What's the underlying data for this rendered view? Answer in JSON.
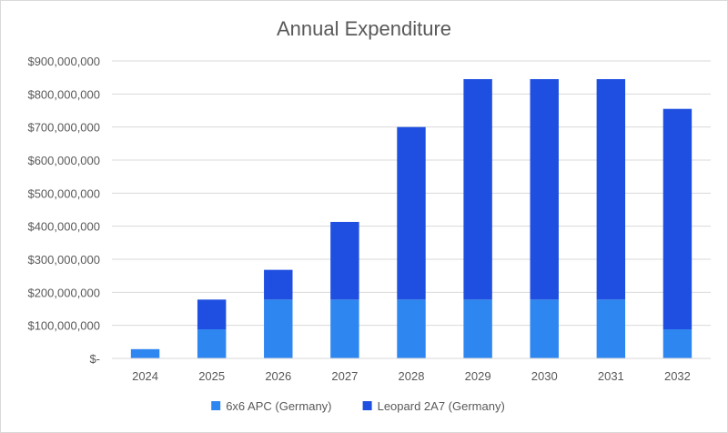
{
  "chart_data": {
    "type": "bar",
    "stacked": true,
    "title": "Annual Expenditure",
    "xlabel": "",
    "ylabel": "",
    "categories": [
      "2024",
      "2025",
      "2026",
      "2027",
      "2028",
      "2029",
      "2030",
      "2031",
      "2032"
    ],
    "series": [
      {
        "name": "6x6 APC (Germany)",
        "color": "#2e86f0",
        "values": [
          28000000,
          88000000,
          178000000,
          178000000,
          178000000,
          178000000,
          178000000,
          178000000,
          88000000
        ]
      },
      {
        "name": "Leopard 2A7 (Germany)",
        "color": "#1f4fe0",
        "values": [
          0,
          90000000,
          90000000,
          235000000,
          522000000,
          667000000,
          667000000,
          667000000,
          667000000
        ]
      }
    ],
    "ylim": [
      0,
      900000000
    ],
    "yticks": [
      0,
      100000000,
      200000000,
      300000000,
      400000000,
      500000000,
      600000000,
      700000000,
      800000000,
      900000000
    ],
    "ytick_labels": [
      "$-",
      "$100,000,000",
      "$200,000,000",
      "$300,000,000",
      "$400,000,000",
      "$500,000,000",
      "$600,000,000",
      "$700,000,000",
      "$800,000,000",
      "$900,000,000"
    ],
    "grid": true,
    "legend_position": "bottom"
  }
}
